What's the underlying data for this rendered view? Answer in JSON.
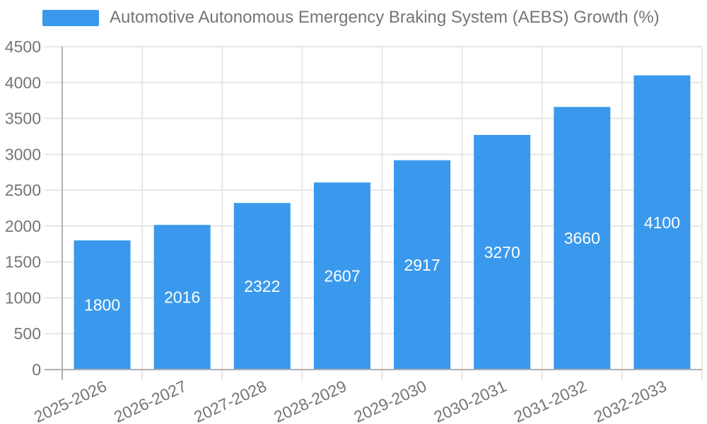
{
  "chart_data": {
    "type": "bar",
    "title": "",
    "xlabel": "",
    "ylabel": "",
    "categories": [
      "2025-2026",
      "2026-2027",
      "2027-2028",
      "2028-2029",
      "2029-2030",
      "2030-2031",
      "2031-2032",
      "2032-2033"
    ],
    "series": [
      {
        "name": "Automotive Autonomous Emergency Braking System (AEBS) Growth (%)",
        "values": [
          1800,
          2016,
          2322,
          2607,
          2917,
          3270,
          3660,
          4100
        ]
      }
    ],
    "bar_value_labels": [
      "1800",
      "2016",
      "2322",
      "2607",
      "2917",
      "3270",
      "3660",
      "4100"
    ],
    "ylim": [
      0,
      4500
    ],
    "ytick_step": 500,
    "yticks": [
      0,
      500,
      1000,
      1500,
      2000,
      2500,
      3000,
      3500,
      4000,
      4500
    ],
    "grid": true,
    "legend_position": "top-left",
    "x_label_rotation_deg": -25,
    "colors": {
      "bar": "#3a99ec",
      "bar_label": "#ffffff",
      "grid_line": "#e6e6e6",
      "axis_line": "#b0b0b0",
      "tick_text": "#757575",
      "legend_text": "#757575",
      "background": "#ffffff"
    }
  }
}
